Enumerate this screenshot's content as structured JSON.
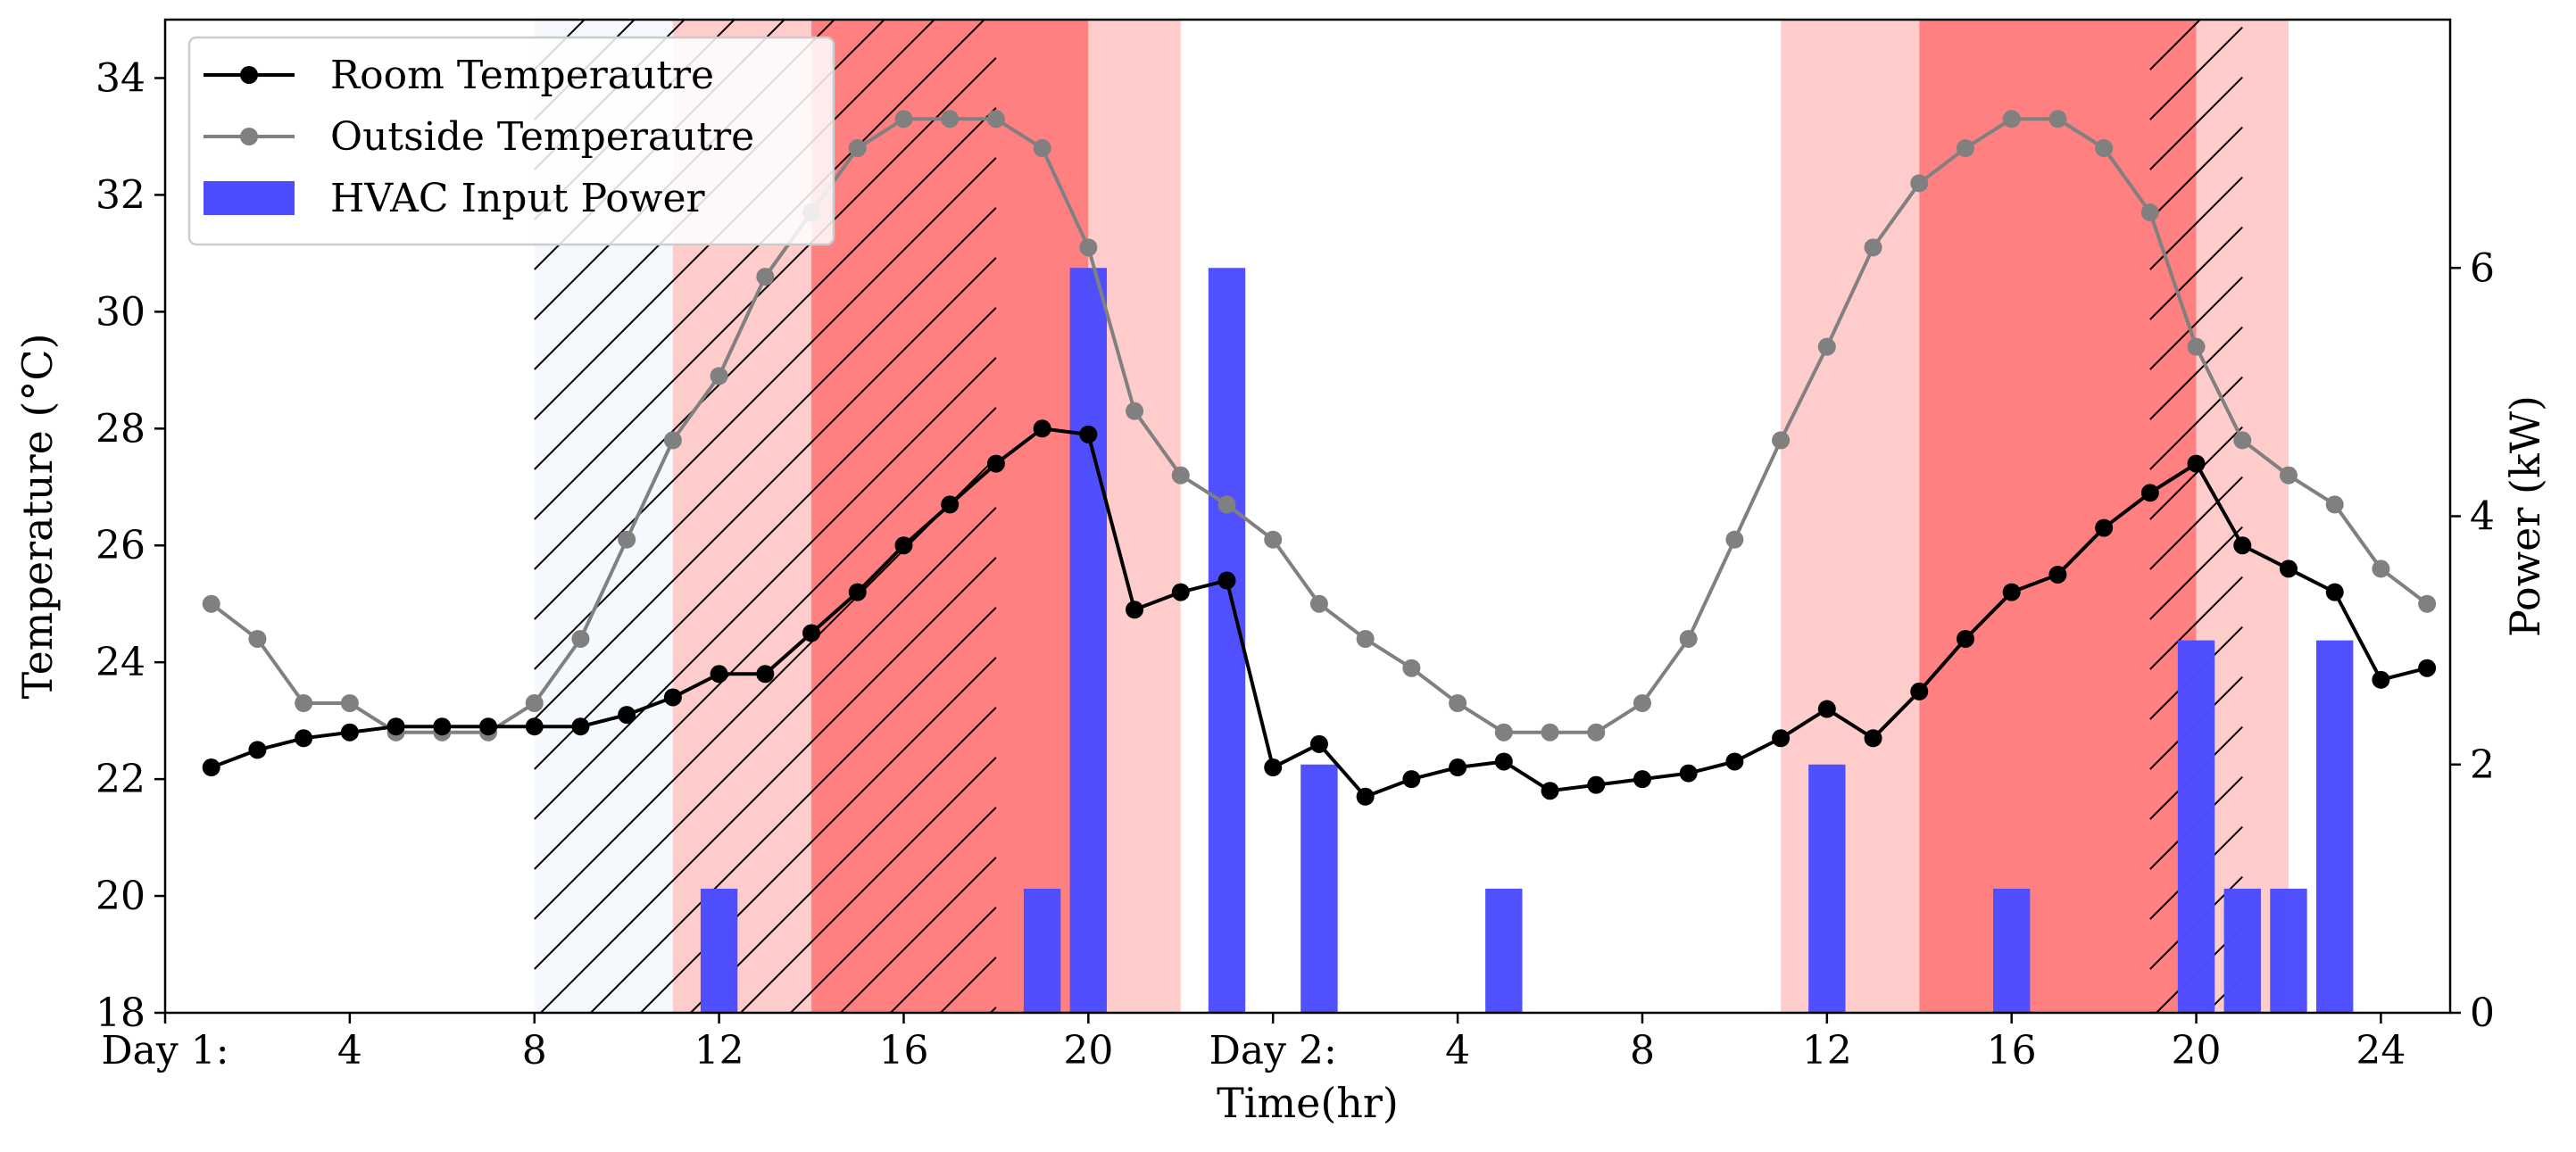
{
  "chart_data": {
    "type": "combo",
    "title": "",
    "xlabel": "Time(hr)",
    "ylabel_left": "Temperature ($^{\\circ}$C)",
    "ylabel_left_display": "Temperature (°C)",
    "ylabel_right": "Power (kW)",
    "ylim_left": [
      18,
      35
    ],
    "ylim_right": [
      0,
      8
    ],
    "xlim": [
      0,
      49.5
    ],
    "x_ticks": [
      {
        "x": 0,
        "label": "Day 1:"
      },
      {
        "x": 4,
        "label": "4"
      },
      {
        "x": 8,
        "label": "8"
      },
      {
        "x": 12,
        "label": "12"
      },
      {
        "x": 16,
        "label": "16"
      },
      {
        "x": 20,
        "label": "20"
      },
      {
        "x": 24,
        "label": "Day 2:"
      },
      {
        "x": 28,
        "label": "4"
      },
      {
        "x": 32,
        "label": "8"
      },
      {
        "x": 36,
        "label": "12"
      },
      {
        "x": 40,
        "label": "16"
      },
      {
        "x": 44,
        "label": "20"
      },
      {
        "x": 48,
        "label": "24"
      }
    ],
    "y_left_ticks": [
      "18",
      "20",
      "22",
      "24",
      "26",
      "28",
      "30",
      "32",
      "34"
    ],
    "y_right_ticks": [
      "0",
      "2",
      "4",
      "6"
    ],
    "legend": {
      "placement": "upper-left",
      "entries": [
        {
          "label": "Room Temperautre",
          "color": "#000000",
          "kind": "line-marker"
        },
        {
          "label": "Outside Temperautre",
          "color": "#808080",
          "kind": "line-marker"
        },
        {
          "label": "HVAC Input Power",
          "color": "#4d4dff",
          "kind": "bar"
        }
      ]
    },
    "shaded_regions": [
      {
        "x0": 8,
        "x1": 11,
        "color": "#f5f8fc",
        "kind": "off-peak"
      },
      {
        "x0": 11,
        "x1": 14,
        "color": "#ffcccc",
        "kind": "mid-peak"
      },
      {
        "x0": 14,
        "x1": 20,
        "color": "#ff8080",
        "kind": "on-peak"
      },
      {
        "x0": 20,
        "x1": 22,
        "color": "#ffcccc",
        "kind": "mid-peak"
      },
      {
        "x0": 35,
        "x1": 38,
        "color": "#ffcccc",
        "kind": "mid-peak"
      },
      {
        "x0": 38,
        "x1": 44,
        "color": "#ff8080",
        "kind": "on-peak"
      },
      {
        "x0": 44,
        "x1": 46,
        "color": "#ffcccc",
        "kind": "mid-peak"
      }
    ],
    "hatched_regions": [
      {
        "x0": 8,
        "x1": 18
      },
      {
        "x0": 43,
        "x1": 45
      }
    ],
    "series": [
      {
        "name": "Room Temperautre",
        "axis": "left",
        "color": "#000000",
        "x": [
          1,
          2,
          3,
          4,
          5,
          6,
          7,
          8,
          9,
          10,
          11,
          12,
          13,
          14,
          15,
          16,
          17,
          18,
          19,
          20,
          21,
          22,
          23,
          24,
          25,
          26,
          27,
          28,
          29,
          30,
          31,
          32,
          33,
          34,
          35,
          36,
          37,
          38,
          39,
          40,
          41,
          42,
          43,
          44,
          45,
          46,
          47,
          48,
          49
        ],
        "values": [
          22.2,
          22.5,
          22.7,
          22.8,
          22.9,
          22.9,
          22.9,
          22.9,
          22.9,
          23.1,
          23.4,
          23.8,
          23.8,
          24.5,
          25.2,
          26.0,
          26.7,
          27.4,
          28.0,
          27.9,
          24.9,
          25.2,
          25.4,
          22.2,
          22.6,
          21.7,
          22.0,
          22.2,
          22.3,
          21.8,
          21.9,
          22.0,
          22.1,
          22.3,
          22.7,
          23.2,
          22.7,
          23.5,
          24.4,
          25.2,
          25.5,
          26.3,
          26.9,
          27.4,
          26.0,
          25.6,
          25.2,
          23.7,
          23.9
        ]
      },
      {
        "name": "Outside Temperautre",
        "axis": "left",
        "color": "#808080",
        "x": [
          1,
          2,
          3,
          4,
          5,
          6,
          7,
          8,
          9,
          10,
          11,
          12,
          13,
          14,
          15,
          16,
          17,
          18,
          19,
          20,
          21,
          22,
          23,
          24,
          25,
          26,
          27,
          28,
          29,
          30,
          31,
          32,
          33,
          34,
          35,
          36,
          37,
          38,
          39,
          40,
          41,
          42,
          43,
          44,
          45,
          46,
          47,
          48,
          49
        ],
        "values": [
          25.0,
          24.4,
          23.3,
          23.3,
          22.8,
          22.8,
          22.8,
          23.3,
          24.4,
          26.1,
          27.8,
          28.9,
          30.6,
          31.7,
          32.8,
          33.3,
          33.3,
          33.3,
          32.8,
          31.1,
          28.3,
          27.2,
          26.7,
          26.1,
          25.0,
          24.4,
          23.9,
          23.3,
          22.8,
          22.8,
          22.8,
          23.3,
          24.4,
          26.1,
          27.8,
          29.4,
          31.1,
          32.2,
          32.8,
          33.3,
          33.3,
          32.8,
          31.7,
          29.4,
          27.8,
          27.2,
          26.7,
          25.6,
          25.0
        ]
      },
      {
        "name": "HVAC Input Power",
        "axis": "right",
        "type": "bar",
        "color": "#4d4dff",
        "x": [
          12,
          19,
          20,
          23,
          25,
          29,
          36,
          40,
          44,
          45,
          46,
          47
        ],
        "values": [
          1,
          1,
          6,
          6,
          2,
          1,
          2,
          1,
          3,
          1,
          1,
          3
        ]
      }
    ]
  }
}
